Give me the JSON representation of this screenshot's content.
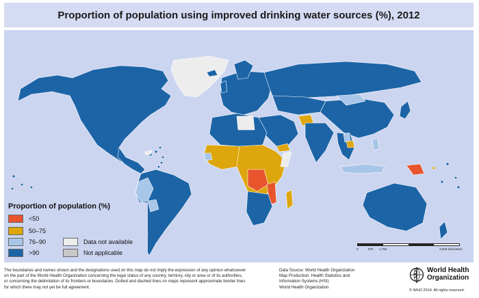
{
  "title": "Proportion of population using improved drinking water sources (%), 2012",
  "legend": {
    "title": "Proportion of population (%)",
    "items": [
      {
        "label": "<50",
        "color": "#e8552d"
      },
      {
        "label": "50–75",
        "color": "#dda60c"
      },
      {
        "label": "76–90",
        "color": "#a8c6e8"
      },
      {
        "label": ">90",
        "color": "#1c64a6"
      },
      {
        "label": "Data not available",
        "color": "#ededed"
      },
      {
        "label": "Not applicable",
        "color": "#c8c8c8"
      }
    ]
  },
  "scale": {
    "ticks": [
      "0",
      "875",
      "1,750",
      "3,500 Kilometers"
    ]
  },
  "footer": {
    "disclaimer": [
      "The boundaries and names shown and the designations used on this map do not imply the expression of any opinion whatsoever",
      "on the part of the World Health Organization concerning the legal status of any country, territory, city or area or of its authorities,",
      "or concerning the delimitation of its frontiers or boundaries. Dotted and dashed lines on maps represent approximate border lines",
      "for which there may not yet be full agreement."
    ],
    "source": [
      "Data Source: World Health Organization",
      "Map Production: Health Statistics and",
      "Information Systems (HSI)",
      "World Health Organization"
    ],
    "org_name_line1": "World Health",
    "org_name_line2": "Organization",
    "copyright": "© WHO 2014. All rights reserved."
  },
  "colors": {
    "ocean": "#ccd5f0",
    "title_bg": "#d4dbf2",
    "high": "#1c64a6",
    "mid_high": "#a8c6e8",
    "mid_low": "#dda60c",
    "low": "#e8552d",
    "na": "#ededed"
  }
}
